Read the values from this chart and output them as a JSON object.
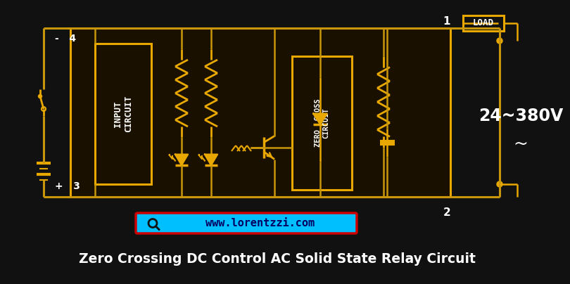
{
  "bg_color": "#111111",
  "gold": "#C8960A",
  "gold_bright": "#E8A800",
  "white": "#FFFFFF",
  "cyan": "#00BFFF",
  "red_border": "#CC0000",
  "dark_gold_bg": "#1a1000",
  "title": "Zero Crossing DC Control AC Solid State Relay Circuit",
  "title_color": "#FFFFFF",
  "title_fontsize": 13.5,
  "website": "www.lorentzzi.com",
  "voltage": "24~380V",
  "tilde": "~",
  "load_label": "LOAD",
  "input_label": "INPUT\nCIRCUIT",
  "zero_cross_label": "ZERO  CROSS\nCIRCUIT"
}
